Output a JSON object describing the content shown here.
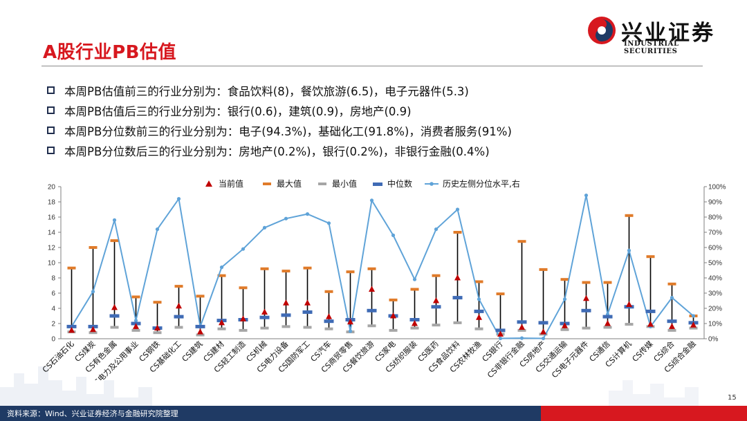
{
  "header": {
    "title": "A股行业PB估值",
    "logo_cn": "兴业证券",
    "logo_en": "INDUSTRIAL SECURITIES",
    "logo_color": "#d7181f"
  },
  "bullets": [
    "本周PB估值前三的行业分别为：食品饮料(8)，餐饮旅游(6.5)，电子元器件(5.3)",
    "本周PB估值后三的行业分别为：银行(0.6)，建筑(0.9)，房地产(0.9)",
    "本周PB分位数前三的行业分别为：电子(94.3%)，基础化工(91.8%)，消费者服务(91%)",
    "本周PB分位数后三的行业分别为：房地产(0.2%)，银行(0.2%)，非银行金融(0.4%)"
  ],
  "chart_data": {
    "type": "line",
    "title": "",
    "legend": {
      "placement": "top",
      "items": [
        "当前值",
        "最大值",
        "最小值",
        "中位数",
        "历史左侧分位水平,右"
      ]
    },
    "colors": {
      "current": "#c00000",
      "max": "#e07b2a",
      "min": "#a6a6a6",
      "median": "#3f6bb5",
      "percentile_line": "#5fa3d8",
      "whisker": "#000000"
    },
    "left_axis": {
      "ylim": [
        0,
        20
      ],
      "ticks": [
        "0",
        "2",
        "4",
        "6",
        "8",
        "10",
        "12",
        "14",
        "16",
        "18",
        "20"
      ]
    },
    "right_axis": {
      "ylim": [
        0,
        100
      ],
      "ticks": [
        "0%",
        "10%",
        "20%",
        "30%",
        "40%",
        "50%",
        "60%",
        "70%",
        "80%",
        "90%",
        "100%"
      ]
    },
    "categories": [
      "CS石油石化",
      "CS煤炭",
      "CS有色金属",
      "CS电力及公用事业",
      "CS钢铁",
      "CS基础化工",
      "CS建筑",
      "CS建材",
      "CS轻工制造",
      "CS机械",
      "CS电力设备",
      "CS国防军工",
      "CS汽车",
      "CS商贸零售",
      "CS餐饮旅游",
      "CS家电",
      "CS纺织服装",
      "CS医药",
      "CS食品饮料",
      "CS农林牧渔",
      "CS银行",
      "CS非银行金融",
      "CS房地产",
      "CS交通运输",
      "CS电子元器件",
      "CS通信",
      "CS计算机",
      "CS传媒",
      "CS综合",
      "CS综合金融"
    ],
    "series": [
      {
        "name": "最大值",
        "values": [
          9.3,
          12.0,
          12.9,
          5.5,
          4.8,
          6.9,
          5.6,
          8.3,
          6.7,
          9.2,
          8.9,
          9.3,
          6.2,
          8.8,
          9.2,
          5.1,
          6.5,
          8.3,
          14.0,
          7.5,
          5.9,
          12.8,
          9.1,
          7.8,
          7.4,
          7.4,
          16.2,
          10.8,
          7.2,
          3.0
        ]
      },
      {
        "name": "最小值",
        "values": [
          0.9,
          0.8,
          1.5,
          1.1,
          0.8,
          1.5,
          0.5,
          1.3,
          1.1,
          1.4,
          1.6,
          1.5,
          1.3,
          0.9,
          1.7,
          1.1,
          1.4,
          1.8,
          2.1,
          1.3,
          0.6,
          1.1,
          0.6,
          1.2,
          1.4,
          1.5,
          1.9,
          1.6,
          1.1,
          1.4
        ]
      },
      {
        "name": "中位数",
        "values": [
          1.6,
          1.6,
          3.0,
          2.0,
          1.4,
          2.9,
          1.6,
          2.4,
          2.5,
          2.8,
          3.1,
          3.5,
          2.3,
          2.5,
          3.7,
          3.0,
          2.5,
          4.2,
          5.4,
          3.6,
          1.1,
          2.2,
          2.1,
          2.0,
          3.7,
          2.9,
          4.2,
          3.6,
          2.3,
          2.1
        ]
      },
      {
        "name": "当前值",
        "values": [
          1.1,
          1.2,
          4.1,
          1.6,
          1.4,
          4.3,
          0.9,
          2.1,
          2.6,
          3.5,
          4.7,
          4.7,
          2.9,
          2.2,
          6.5,
          3.0,
          2.0,
          5.0,
          8.0,
          2.8,
          0.6,
          1.5,
          0.9,
          1.7,
          5.3,
          2.0,
          4.5,
          1.9,
          1.6,
          1.8
        ]
      },
      {
        "name": "历史左侧分位水平,右",
        "values": [
          8,
          31,
          78,
          12,
          72,
          92,
          8,
          47,
          59,
          73,
          79,
          82,
          76,
          5,
          91,
          68,
          39,
          72,
          85,
          26,
          0.2,
          0.4,
          0.2,
          26,
          94.3,
          16,
          58,
          8,
          27,
          15
        ]
      }
    ]
  },
  "footer": {
    "source": "资料来源：Wind、兴业证券经济与金融研究院整理",
    "page": "15"
  }
}
